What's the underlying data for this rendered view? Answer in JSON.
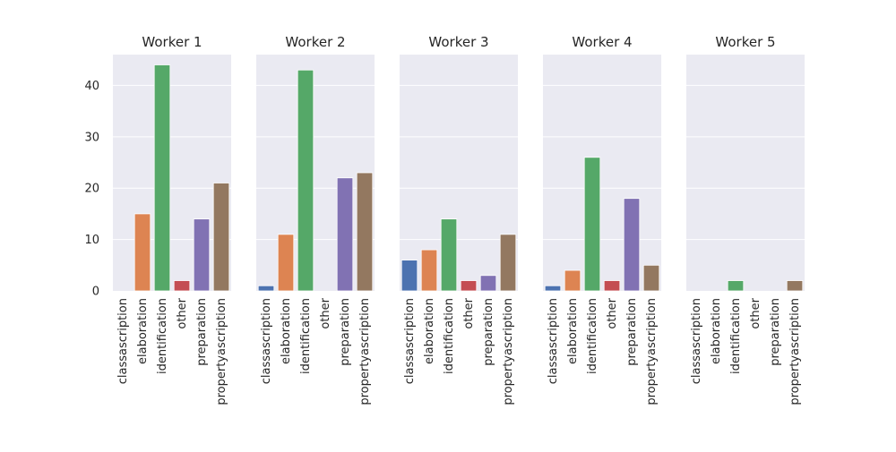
{
  "chart_data": {
    "type": "bar",
    "facet_titles": [
      "Worker 1",
      "Worker 2",
      "Worker 3",
      "Worker 4",
      "Worker 5"
    ],
    "categories": [
      "classascription",
      "elaboration",
      "identification",
      "other",
      "preparation",
      "propertyascription"
    ],
    "colors": [
      "#4c72b0",
      "#dd8452",
      "#55a868",
      "#c44e52",
      "#8172b3",
      "#937860"
    ],
    "background": "#eaeaf2",
    "y_ticks": [
      "0",
      "10",
      "20",
      "30",
      "40"
    ],
    "ylim": [
      0,
      46
    ],
    "sharey": true,
    "grid": true,
    "series": [
      {
        "values": [
          0,
          15,
          44,
          2,
          14,
          21
        ]
      },
      {
        "values": [
          1,
          11,
          43,
          0,
          22,
          23
        ]
      },
      {
        "values": [
          6,
          8,
          14,
          2,
          3,
          11
        ]
      },
      {
        "values": [
          1,
          4,
          26,
          2,
          18,
          5
        ]
      },
      {
        "values": [
          0,
          0,
          2,
          0,
          0,
          2
        ]
      }
    ]
  }
}
